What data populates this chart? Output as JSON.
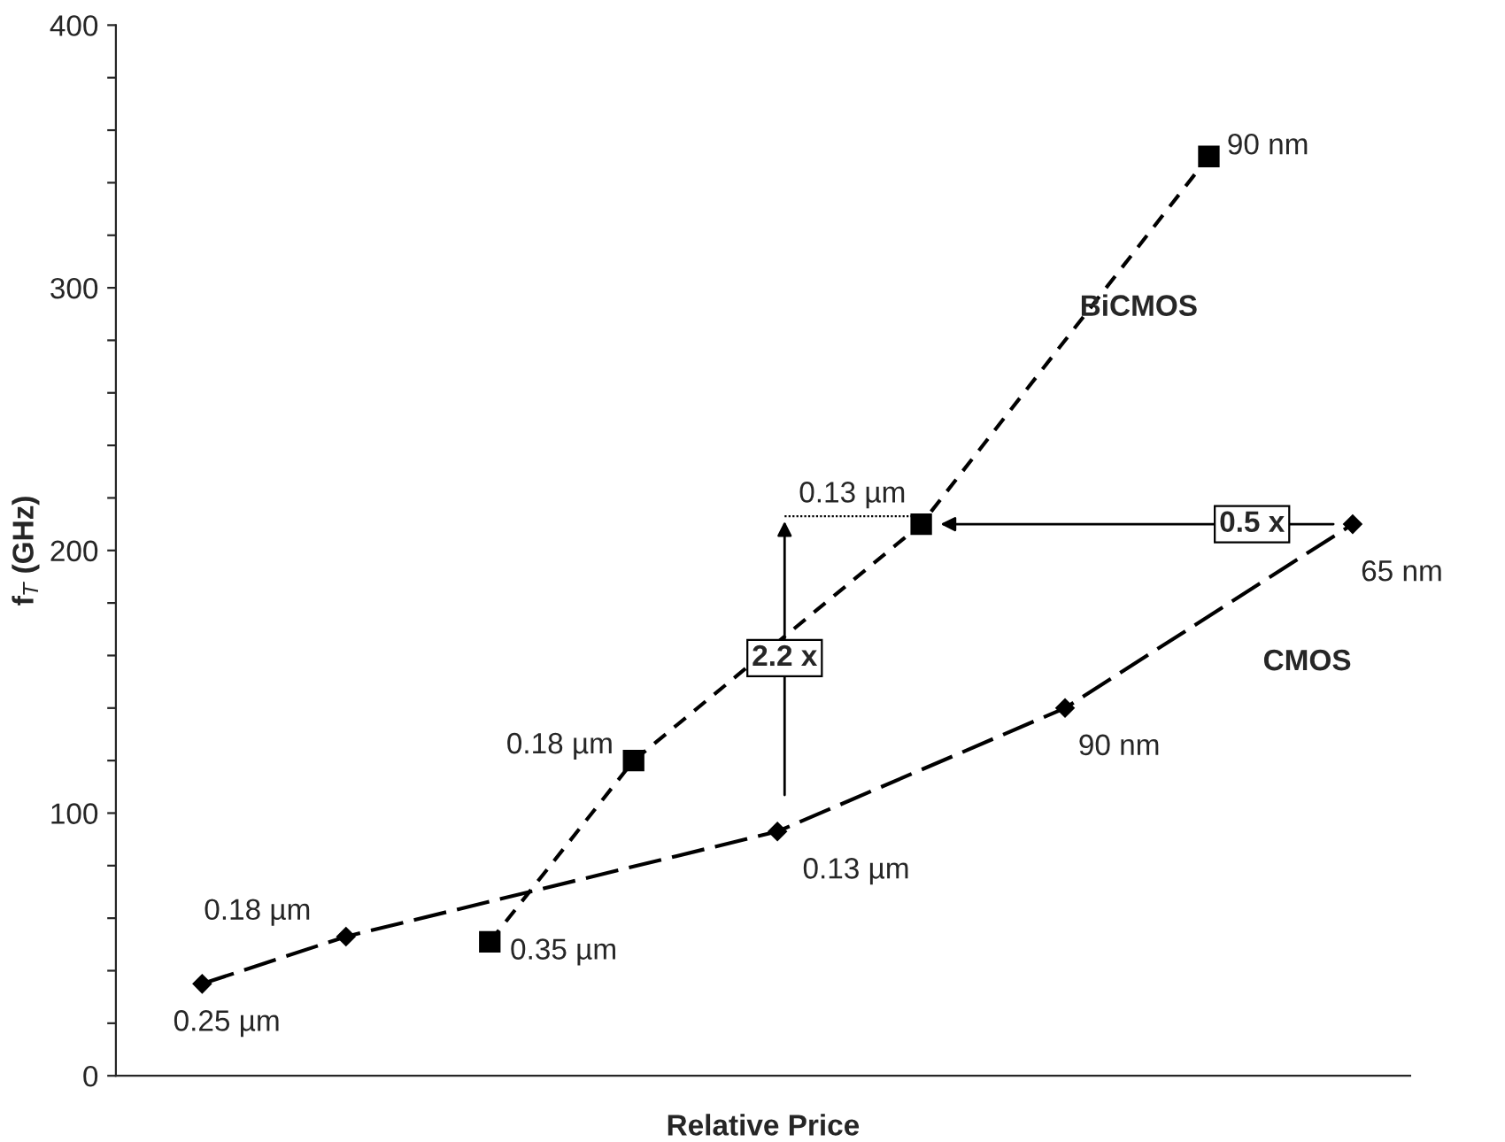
{
  "chart_data": {
    "type": "line",
    "xlabel": "Relative Price",
    "ylabel": "f$_{T}$ (GHz)",
    "categories": [
      null,
      null,
      null,
      null,
      null,
      null,
      null,
      null,
      null
    ],
    "ylim": [
      0,
      400
    ],
    "yticks": [
      0,
      {
        "value": 20,
        "label": null
      },
      {
        "value": 40,
        "label": null
      },
      {
        "value": 60,
        "label": null
      },
      {
        "value": 80,
        "label": null
      },
      100,
      {
        "value": 120,
        "label": null
      },
      {
        "value": 140,
        "label": null
      },
      {
        "value": 160,
        "label": null
      },
      {
        "value": 180,
        "label": null
      },
      200,
      {
        "value": 220,
        "label": null
      },
      {
        "value": 240,
        "label": null
      },
      {
        "value": 260,
        "label": null
      },
      {
        "value": 280,
        "label": null
      },
      300,
      {
        "value": 320,
        "label": null
      },
      {
        "value": 340,
        "label": null
      },
      {
        "value": 360,
        "label": null
      },
      {
        "value": 380,
        "label": null
      },
      400
    ],
    "tick_labels": "y",
    "grid": false,
    "legend": false,
    "line_style": "dashed",
    "series": [
      {
        "name": "CMOS",
        "color": "#000000",
        "marker": "diamond",
        "values": [
          35,
          53,
          null,
          null,
          93,
          null,
          140,
          null,
          210
        ]
      },
      {
        "name": "BiCMOS",
        "color": "#000000",
        "marker": "square",
        "values": [
          null,
          null,
          51,
          120,
          null,
          210,
          null,
          350,
          null
        ]
      }
    ],
    "annotations": [
      "0.25 µm",
      "0.18 µm",
      "0.35 µm",
      "0.18 µm",
      "0.13 µm",
      "0.13 µm",
      "90 nm",
      "90 nm",
      "65 nm",
      "2.2 x",
      "0.5 x"
    ]
  }
}
